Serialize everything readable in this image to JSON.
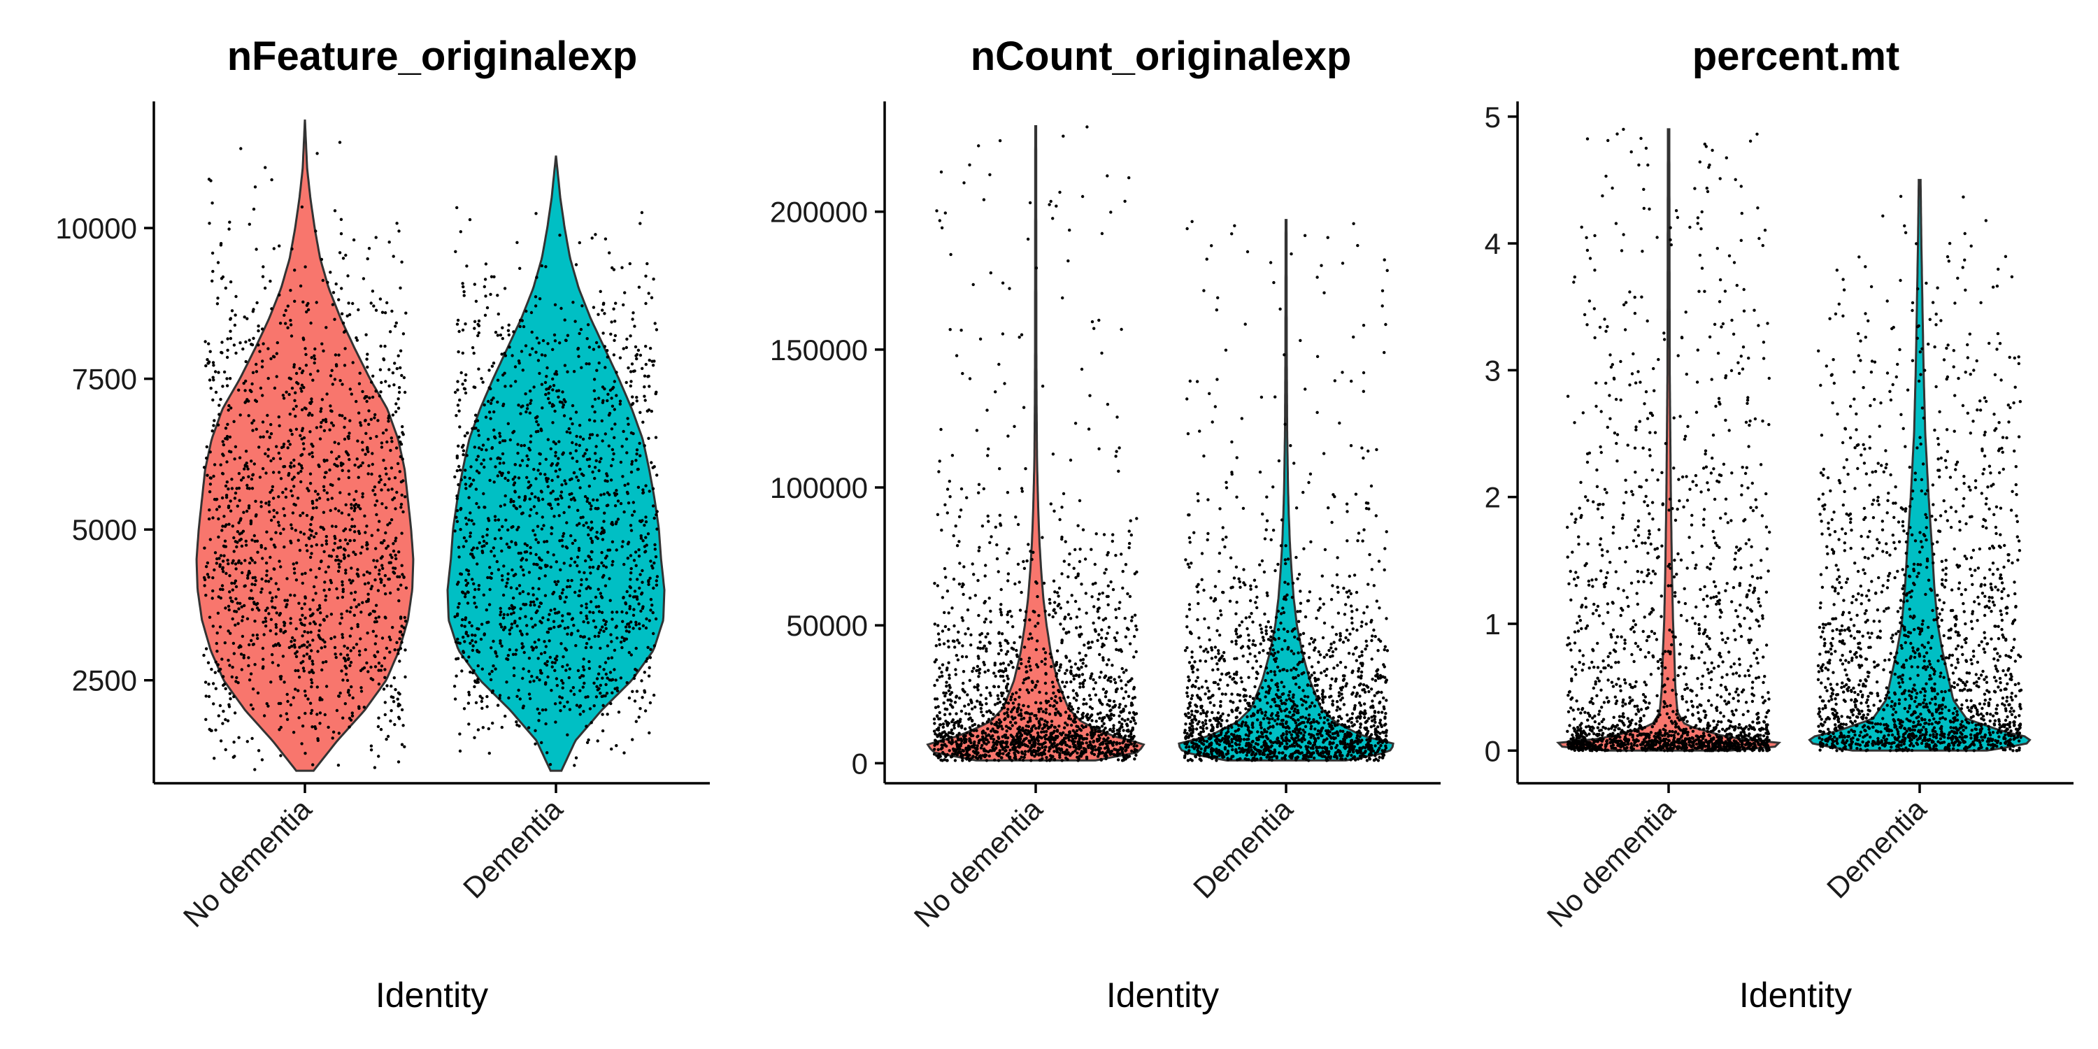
{
  "chart_data": [
    {
      "type": "violin",
      "title": "nFeature_originalexp",
      "xlabel": "Identity",
      "ylabel": "",
      "categories": [
        "No dementia",
        "Dementia"
      ],
      "colors": [
        "#F8766D",
        "#00BFC4"
      ],
      "ylim": [
        850,
        12100
      ],
      "yticks": [
        2500,
        5000,
        7500,
        10000
      ],
      "ytick_labels": [
        "2500",
        "5000",
        "7500",
        "10000"
      ],
      "groups": [
        {
          "name": "No dementia",
          "min": 1000,
          "max": 11800,
          "median": 4700,
          "n_points": 1500,
          "density": [
            [
              1000,
              0.08
            ],
            [
              1500,
              0.3
            ],
            [
              2000,
              0.55
            ],
            [
              2500,
              0.75
            ],
            [
              3000,
              0.87
            ],
            [
              3500,
              0.95
            ],
            [
              4000,
              0.99
            ],
            [
              4500,
              1.0
            ],
            [
              5000,
              0.98
            ],
            [
              5500,
              0.95
            ],
            [
              6000,
              0.92
            ],
            [
              6500,
              0.86
            ],
            [
              7000,
              0.76
            ],
            [
              7500,
              0.6
            ],
            [
              8000,
              0.46
            ],
            [
              8500,
              0.33
            ],
            [
              9000,
              0.22
            ],
            [
              9500,
              0.14
            ],
            [
              10000,
              0.09
            ],
            [
              10500,
              0.05
            ],
            [
              11000,
              0.02
            ],
            [
              11800,
              0.0
            ]
          ]
        },
        {
          "name": "Dementia",
          "min": 1000,
          "max": 11200,
          "median": 4800,
          "n_points": 1500,
          "density": [
            [
              1000,
              0.05
            ],
            [
              1500,
              0.18
            ],
            [
              2000,
              0.42
            ],
            [
              2500,
              0.7
            ],
            [
              3000,
              0.9
            ],
            [
              3500,
              0.99
            ],
            [
              4000,
              1.0
            ],
            [
              4500,
              0.97
            ],
            [
              5000,
              0.95
            ],
            [
              5500,
              0.91
            ],
            [
              6000,
              0.86
            ],
            [
              6500,
              0.8
            ],
            [
              7000,
              0.7
            ],
            [
              7500,
              0.58
            ],
            [
              8000,
              0.45
            ],
            [
              8500,
              0.32
            ],
            [
              9000,
              0.21
            ],
            [
              9500,
              0.13
            ],
            [
              10000,
              0.08
            ],
            [
              10500,
              0.04
            ],
            [
              11200,
              0.0
            ]
          ]
        }
      ]
    },
    {
      "type": "violin",
      "title": "nCount_originalexp",
      "xlabel": "Identity",
      "ylabel": "",
      "categories": [
        "No dementia",
        "Dementia"
      ],
      "colors": [
        "#F8766D",
        "#00BFC4"
      ],
      "ylim": [
        -6000,
        240000
      ],
      "yticks": [
        0,
        50000,
        100000,
        150000,
        200000
      ],
      "ytick_labels": [
        "0",
        "50000",
        "100000",
        "150000",
        "200000"
      ],
      "groups": [
        {
          "name": "No dementia",
          "min": 1000,
          "max": 231000,
          "median": 9000,
          "n_points": 1800,
          "density": [
            [
              1000,
              0.55
            ],
            [
              4000,
              0.95
            ],
            [
              7000,
              1.0
            ],
            [
              10000,
              0.7
            ],
            [
              15000,
              0.42
            ],
            [
              20000,
              0.3
            ],
            [
              30000,
              0.2
            ],
            [
              40000,
              0.14
            ],
            [
              50000,
              0.1
            ],
            [
              60000,
              0.07
            ],
            [
              70000,
              0.05
            ],
            [
              80000,
              0.035
            ],
            [
              90000,
              0.025
            ],
            [
              100000,
              0.018
            ],
            [
              110000,
              0.012
            ],
            [
              130000,
              0.008
            ],
            [
              150000,
              0.006
            ],
            [
              231000,
              0.004
            ]
          ]
        },
        {
          "name": "Dementia",
          "min": 1000,
          "max": 197000,
          "median": 9500,
          "n_points": 1800,
          "density": [
            [
              1000,
              0.55
            ],
            [
              4000,
              0.95
            ],
            [
              7000,
              1.0
            ],
            [
              10000,
              0.7
            ],
            [
              15000,
              0.45
            ],
            [
              20000,
              0.32
            ],
            [
              30000,
              0.22
            ],
            [
              40000,
              0.15
            ],
            [
              50000,
              0.1
            ],
            [
              60000,
              0.07
            ],
            [
              70000,
              0.05
            ],
            [
              80000,
              0.035
            ],
            [
              90000,
              0.025
            ],
            [
              100000,
              0.018
            ],
            [
              120000,
              0.01
            ],
            [
              150000,
              0.006
            ],
            [
              197000,
              0.004
            ]
          ]
        }
      ]
    },
    {
      "type": "violin",
      "title": "percent.mt",
      "xlabel": "Identity",
      "ylabel": "",
      "categories": [
        "No dementia",
        "Dementia"
      ],
      "colors": [
        "#F8766D",
        "#00BFC4"
      ],
      "ylim": [
        -0.23,
        5.12
      ],
      "yticks": [
        0,
        1,
        2,
        3,
        4,
        5
      ],
      "ytick_labels": [
        "0",
        "1",
        "2",
        "3",
        "4",
        "5"
      ],
      "groups": [
        {
          "name": "No dementia",
          "min": 0,
          "max": 4.9,
          "median": 0.05,
          "n_points": 1800,
          "density": [
            [
              0,
              0.55
            ],
            [
              0.03,
              0.95
            ],
            [
              0.06,
              1.0
            ],
            [
              0.1,
              0.55
            ],
            [
              0.2,
              0.15
            ],
            [
              0.3,
              0.08
            ],
            [
              0.5,
              0.06
            ],
            [
              0.8,
              0.05
            ],
            [
              1.0,
              0.04
            ],
            [
              1.4,
              0.03
            ],
            [
              2.0,
              0.02
            ],
            [
              2.5,
              0.015
            ],
            [
              3.0,
              0.01
            ],
            [
              4.0,
              0.008
            ],
            [
              4.9,
              0.006
            ]
          ]
        },
        {
          "name": "Dementia",
          "min": 0,
          "max": 4.5,
          "median": 0.12,
          "n_points": 1800,
          "density": [
            [
              0,
              0.6
            ],
            [
              0.05,
              0.95
            ],
            [
              0.1,
              1.0
            ],
            [
              0.15,
              0.75
            ],
            [
              0.25,
              0.42
            ],
            [
              0.4,
              0.3
            ],
            [
              0.6,
              0.25
            ],
            [
              0.8,
              0.2
            ],
            [
              1.0,
              0.16
            ],
            [
              1.3,
              0.13
            ],
            [
              1.6,
              0.11
            ],
            [
              2.0,
              0.08
            ],
            [
              2.5,
              0.05
            ],
            [
              3.0,
              0.035
            ],
            [
              3.5,
              0.025
            ],
            [
              4.0,
              0.015
            ],
            [
              4.5,
              0.008
            ]
          ]
        }
      ]
    }
  ]
}
